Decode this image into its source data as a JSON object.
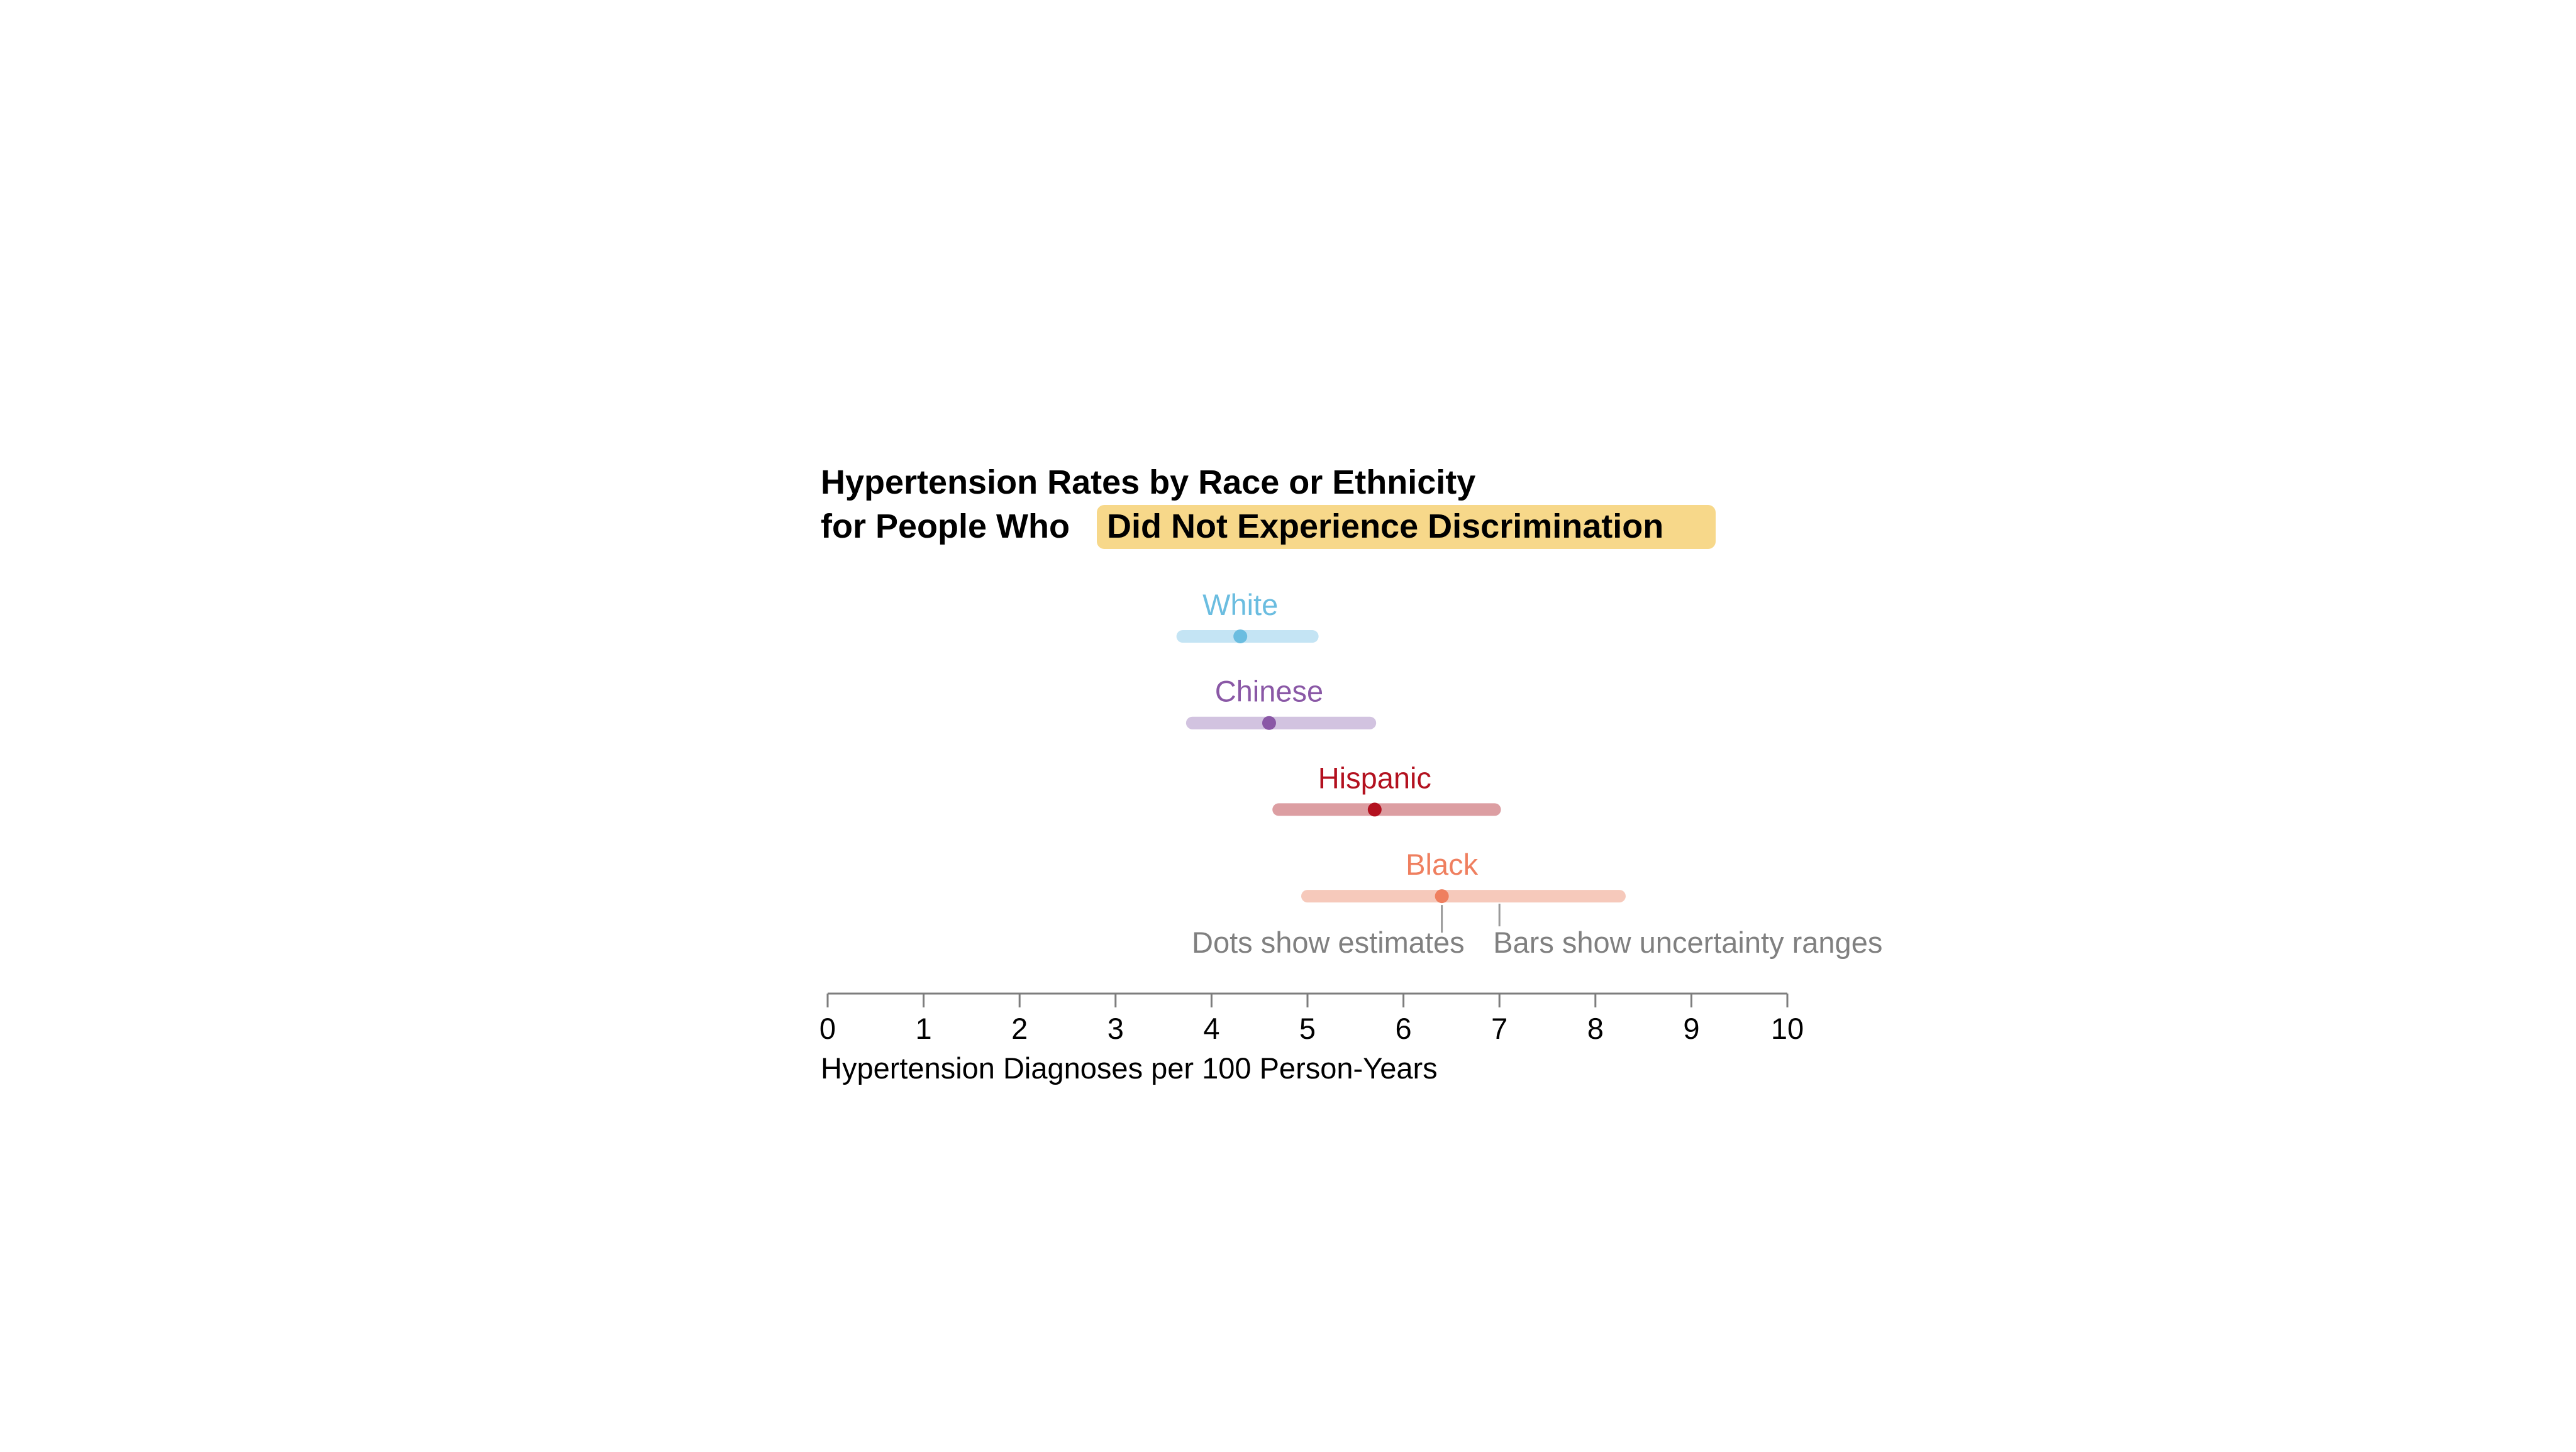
{
  "chart_data": {
    "type": "dot-range",
    "title": {
      "line1": "Hypertension Rates by Race or Ethnicity",
      "line2_prefix": "for People Who ",
      "line2_highlight": "Did Not Experience Discrimination"
    },
    "xlabel": "Hypertension Diagnoses per 100 Person-Years",
    "xlim": [
      0,
      10
    ],
    "xticks": [
      0,
      1,
      2,
      3,
      4,
      5,
      6,
      7,
      8,
      9,
      10
    ],
    "grid": false,
    "series": [
      {
        "name": "White",
        "estimate": 4.3,
        "low": 3.7,
        "high": 5.05,
        "color": "#6bbde0",
        "bar_color": "#c4e4f4"
      },
      {
        "name": "Chinese",
        "estimate": 4.6,
        "low": 3.8,
        "high": 5.65,
        "color": "#8a58a6",
        "bar_color": "#d2c3e0"
      },
      {
        "name": "Hispanic",
        "estimate": 5.7,
        "low": 4.7,
        "high": 6.95,
        "color": "#b3111f",
        "bar_color": "#dc9ea2"
      },
      {
        "name": "Black",
        "estimate": 6.4,
        "low": 5.0,
        "high": 8.25,
        "color": "#ef7f5f",
        "bar_color": "#f6c9bb"
      }
    ],
    "annotations": {
      "dots": "Dots show estimates",
      "bars": "Bars show uncertainty ranges"
    },
    "colors": {
      "highlight_background": "#f7d88a",
      "axis": "#7d7d7d",
      "annotation_text": "#808080",
      "title_text": "#000000"
    }
  }
}
